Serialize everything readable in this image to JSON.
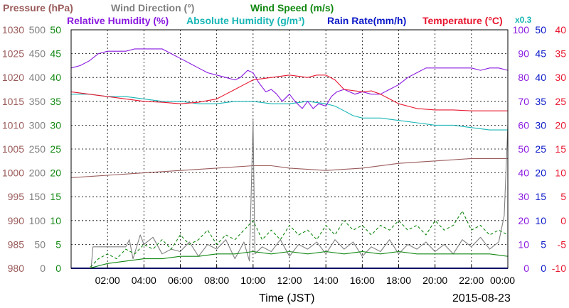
{
  "header": {
    "row1": [
      {
        "text": "Pressure (hPa)",
        "color": "#9a5a5a"
      },
      {
        "text": "Wind Direction (°)",
        "color": "#808080"
      },
      {
        "text": "Wind Speed (m/s)",
        "color": "#118811"
      }
    ],
    "row2": [
      {
        "text": "Relative Humidity (%)",
        "color": "#8a19e0"
      },
      {
        "text": "Absolute Humidity (g/m³)",
        "color": "#17b5b5"
      },
      {
        "text": "Rain Rate(mm/h)",
        "color": "#0a18c8"
      },
      {
        "text": "Temperature (°C)",
        "color": "#e8162f"
      }
    ],
    "abs_scale_note": "x0.3"
  },
  "footer": {
    "xlabel": "Time (JST)",
    "date": "2015-08-23"
  },
  "chart_data": {
    "type": "line",
    "x_ticks": [
      "02:00",
      "04:00",
      "06:00",
      "08:00",
      "10:00",
      "12:00",
      "14:00",
      "16:00",
      "18:00",
      "20:00",
      "22:00",
      "00:00"
    ],
    "x_range_hours": [
      0,
      24
    ],
    "grid": true,
    "axes": {
      "pressure": {
        "ticks": [
          "1030",
          "1025",
          "1020",
          "1015",
          "1010",
          "1005",
          "1000",
          "995",
          "990",
          "985",
          "980"
        ],
        "range": [
          980,
          1030
        ],
        "color": "#9a5a5a"
      },
      "wind_direction": {
        "ticks": [
          "500",
          "450",
          "400",
          "350",
          "300",
          "250",
          "200",
          "150",
          "100",
          "50",
          "0"
        ],
        "range": [
          0,
          500
        ],
        "color": "#808080"
      },
      "wind_speed": {
        "ticks": [
          "50",
          "45",
          "40",
          "35",
          "30",
          "25",
          "20",
          "15",
          "10",
          "5",
          "0"
        ],
        "range": [
          0,
          50
        ],
        "color": "#118811"
      },
      "humidity": {
        "ticks": [
          "100",
          "90",
          "80",
          "70",
          "60",
          "50",
          "40",
          "30",
          "20",
          "10",
          "0"
        ],
        "range": [
          0,
          100
        ],
        "color": "#8a19e0"
      },
      "rain_rate": {
        "ticks": [
          "50",
          "45",
          "40",
          "35",
          "30",
          "25",
          "20",
          "15",
          "10",
          "5",
          "0"
        ],
        "range": [
          0,
          50
        ],
        "color": "#0a18c8"
      },
      "temperature": {
        "ticks": [
          "40",
          "35",
          "30",
          "25",
          "20",
          "15",
          "10",
          "5",
          "0",
          "-5",
          "-10"
        ],
        "range": [
          -10,
          40
        ],
        "color": "#e8162f"
      }
    },
    "series": [
      {
        "name": "Relative Humidity",
        "axis": "humidity",
        "color": "#8a19e0",
        "points": [
          [
            0,
            84
          ],
          [
            0.5,
            85
          ],
          [
            1,
            87
          ],
          [
            1.5,
            90
          ],
          [
            2,
            91
          ],
          [
            3,
            91
          ],
          [
            3.5,
            92
          ],
          [
            4,
            92
          ],
          [
            5,
            92
          ],
          [
            5.5,
            90
          ],
          [
            6,
            88
          ],
          [
            6.5,
            86
          ],
          [
            7,
            84
          ],
          [
            7.5,
            82
          ],
          [
            8,
            81
          ],
          [
            8.5,
            80
          ],
          [
            9,
            79
          ],
          [
            9.3,
            80
          ],
          [
            9.7,
            83
          ],
          [
            10,
            82
          ],
          [
            10.3,
            78
          ],
          [
            10.7,
            74
          ],
          [
            11,
            75
          ],
          [
            11.3,
            73
          ],
          [
            11.6,
            70
          ],
          [
            12,
            73
          ],
          [
            12.3,
            70
          ],
          [
            12.7,
            67
          ],
          [
            13,
            70
          ],
          [
            13.3,
            67
          ],
          [
            13.6,
            69
          ],
          [
            14,
            68
          ],
          [
            14.3,
            72
          ],
          [
            14.6,
            74
          ],
          [
            15,
            75
          ],
          [
            15.3,
            74
          ],
          [
            15.6,
            73
          ],
          [
            16,
            74
          ],
          [
            16.5,
            73
          ],
          [
            17,
            73
          ],
          [
            17.5,
            75
          ],
          [
            18,
            77
          ],
          [
            18.5,
            80
          ],
          [
            19,
            82
          ],
          [
            19.5,
            84
          ],
          [
            20,
            84
          ],
          [
            21,
            84
          ],
          [
            22,
            84
          ],
          [
            22.5,
            83
          ],
          [
            23,
            84
          ],
          [
            23.5,
            84
          ],
          [
            24,
            83
          ]
        ]
      },
      {
        "name": "Absolute Humidity",
        "axis": "humidity",
        "color": "#17b5b5",
        "points": [
          [
            0,
            73
          ],
          [
            1,
            73
          ],
          [
            2,
            72
          ],
          [
            3,
            72
          ],
          [
            4,
            71
          ],
          [
            5,
            70
          ],
          [
            6,
            70
          ],
          [
            7,
            69
          ],
          [
            8,
            69
          ],
          [
            9,
            70
          ],
          [
            10,
            70
          ],
          [
            11,
            69
          ],
          [
            12,
            69
          ],
          [
            13,
            70
          ],
          [
            14,
            69
          ],
          [
            14.5,
            68
          ],
          [
            15,
            66
          ],
          [
            15.5,
            64
          ],
          [
            16,
            63
          ],
          [
            17,
            63
          ],
          [
            18,
            62
          ],
          [
            19,
            61
          ],
          [
            20,
            60
          ],
          [
            21,
            60
          ],
          [
            22,
            59
          ],
          [
            23,
            58
          ],
          [
            23.7,
            58
          ],
          [
            24,
            58
          ]
        ]
      },
      {
        "name": "Temperature",
        "axis": "temperature",
        "color": "#e8162f",
        "points": [
          [
            0,
            27.0
          ],
          [
            1,
            26.5
          ],
          [
            2,
            26.0
          ],
          [
            3,
            25.5
          ],
          [
            4,
            25.0
          ],
          [
            5,
            24.8
          ],
          [
            6,
            24.5
          ],
          [
            7,
            24.8
          ],
          [
            8,
            25.5
          ],
          [
            8.5,
            26.5
          ],
          [
            9,
            27.5
          ],
          [
            9.5,
            28.5
          ],
          [
            10,
            29.5
          ],
          [
            11,
            30.0
          ],
          [
            12,
            30.5
          ],
          [
            13,
            30.0
          ],
          [
            13.5,
            30.5
          ],
          [
            14,
            30.5
          ],
          [
            14.5,
            29.5
          ],
          [
            15,
            27.5
          ],
          [
            16,
            27.0
          ],
          [
            16.5,
            27.2
          ],
          [
            17,
            26.5
          ],
          [
            17.5,
            25.5
          ],
          [
            18,
            24.5
          ],
          [
            19,
            23.5
          ],
          [
            20,
            23.2
          ],
          [
            21,
            23.2
          ],
          [
            22,
            23.0
          ],
          [
            23,
            23.0
          ],
          [
            24,
            23.0
          ]
        ]
      },
      {
        "name": "Pressure",
        "axis": "pressure",
        "color": "#9a5a5a",
        "points": [
          [
            0,
            999.0
          ],
          [
            2,
            999.5
          ],
          [
            4,
            1000.0
          ],
          [
            6,
            1000.5
          ],
          [
            8,
            1001.0
          ],
          [
            10,
            1001.5
          ],
          [
            11,
            1001.5
          ],
          [
            12,
            1001.0
          ],
          [
            14,
            1000.5
          ],
          [
            16,
            1001.0
          ],
          [
            18,
            1002.0
          ],
          [
            20,
            1002.5
          ],
          [
            22,
            1003.0
          ],
          [
            24,
            1003.0
          ]
        ]
      },
      {
        "name": "Wind Direction",
        "axis": "wind_direction",
        "color": "#808080",
        "points": [
          [
            0,
            0
          ],
          [
            1.1,
            0
          ],
          [
            1.2,
            45
          ],
          [
            2,
            45
          ],
          [
            2.5,
            45
          ],
          [
            3,
            45
          ],
          [
            3.2,
            60
          ],
          [
            3.4,
            20
          ],
          [
            3.8,
            70
          ],
          [
            4,
            50
          ],
          [
            4.5,
            65
          ],
          [
            5,
            30
          ],
          [
            5.5,
            40
          ],
          [
            6,
            35
          ],
          [
            6.5,
            55
          ],
          [
            7,
            25
          ],
          [
            7.5,
            50
          ],
          [
            8,
            40
          ],
          [
            8.5,
            60
          ],
          [
            9,
            20
          ],
          [
            9.5,
            55
          ],
          [
            9.8,
            15
          ],
          [
            10.0,
            310
          ],
          [
            10.1,
            30
          ],
          [
            10.5,
            45
          ],
          [
            11,
            35
          ],
          [
            11.5,
            60
          ],
          [
            12,
            25
          ],
          [
            12.5,
            50
          ],
          [
            13,
            40
          ],
          [
            13.5,
            55
          ],
          [
            14,
            30
          ],
          [
            14.5,
            60
          ],
          [
            15,
            40
          ],
          [
            15.5,
            55
          ],
          [
            16,
            25
          ],
          [
            16.5,
            45
          ],
          [
            17,
            35
          ],
          [
            17.5,
            60
          ],
          [
            18,
            30
          ],
          [
            18.5,
            50
          ],
          [
            19,
            40
          ],
          [
            19.5,
            55
          ],
          [
            20,
            35
          ],
          [
            20.5,
            50
          ],
          [
            21,
            30
          ],
          [
            21.5,
            60
          ],
          [
            22,
            45
          ],
          [
            22.5,
            65
          ],
          [
            23,
            40
          ],
          [
            23.5,
            55
          ],
          [
            23.8,
            110
          ],
          [
            24,
            300
          ]
        ]
      },
      {
        "name": "Wind Speed (gust)",
        "axis": "wind_speed",
        "color": "#118811",
        "dashed": true,
        "points": [
          [
            0,
            0
          ],
          [
            1.0,
            0
          ],
          [
            1.5,
            2
          ],
          [
            2,
            3
          ],
          [
            2.5,
            2
          ],
          [
            3,
            4
          ],
          [
            3.5,
            3
          ],
          [
            4,
            5
          ],
          [
            4.5,
            4
          ],
          [
            5,
            6
          ],
          [
            5.5,
            4
          ],
          [
            6,
            7
          ],
          [
            6.5,
            5
          ],
          [
            7,
            6
          ],
          [
            7.5,
            8
          ],
          [
            8,
            5
          ],
          [
            8.5,
            7
          ],
          [
            9,
            6
          ],
          [
            9.5,
            8
          ],
          [
            10,
            10
          ],
          [
            10.5,
            6
          ],
          [
            11,
            8
          ],
          [
            11.5,
            6
          ],
          [
            12,
            9
          ],
          [
            12.5,
            7
          ],
          [
            13,
            8
          ],
          [
            13.5,
            6
          ],
          [
            14,
            9
          ],
          [
            14.5,
            7
          ],
          [
            15,
            10
          ],
          [
            15.5,
            8
          ],
          [
            16,
            9
          ],
          [
            16.5,
            7
          ],
          [
            17,
            9
          ],
          [
            17.5,
            8
          ],
          [
            18,
            10
          ],
          [
            18.5,
            8
          ],
          [
            19,
            9
          ],
          [
            19.5,
            7
          ],
          [
            20,
            10
          ],
          [
            20.5,
            8
          ],
          [
            21,
            9
          ],
          [
            21.5,
            12
          ],
          [
            22,
            8
          ],
          [
            22.5,
            9
          ],
          [
            23,
            7
          ],
          [
            23.5,
            8
          ],
          [
            24,
            7
          ]
        ]
      },
      {
        "name": "Wind Speed (mean)",
        "axis": "wind_speed",
        "color": "#118811",
        "points": [
          [
            0,
            0
          ],
          [
            1.0,
            0
          ],
          [
            1.5,
            0.5
          ],
          [
            2,
            1
          ],
          [
            3,
            1.5
          ],
          [
            4,
            2
          ],
          [
            5,
            2
          ],
          [
            6,
            2.5
          ],
          [
            7,
            2.5
          ],
          [
            8,
            3
          ],
          [
            9,
            3
          ],
          [
            10,
            3.5
          ],
          [
            11,
            3
          ],
          [
            12,
            3.5
          ],
          [
            13,
            3
          ],
          [
            14,
            3.5
          ],
          [
            15,
            3
          ],
          [
            16,
            3.5
          ],
          [
            17,
            3
          ],
          [
            18,
            3.5
          ],
          [
            19,
            3
          ],
          [
            20,
            3
          ],
          [
            21,
            3
          ],
          [
            22,
            3
          ],
          [
            23,
            3
          ],
          [
            24,
            2.5
          ]
        ]
      },
      {
        "name": "Rain Rate",
        "axis": "rain_rate",
        "color": "#0a18c8",
        "points": [
          [
            0,
            0
          ],
          [
            24,
            0
          ]
        ]
      }
    ]
  }
}
